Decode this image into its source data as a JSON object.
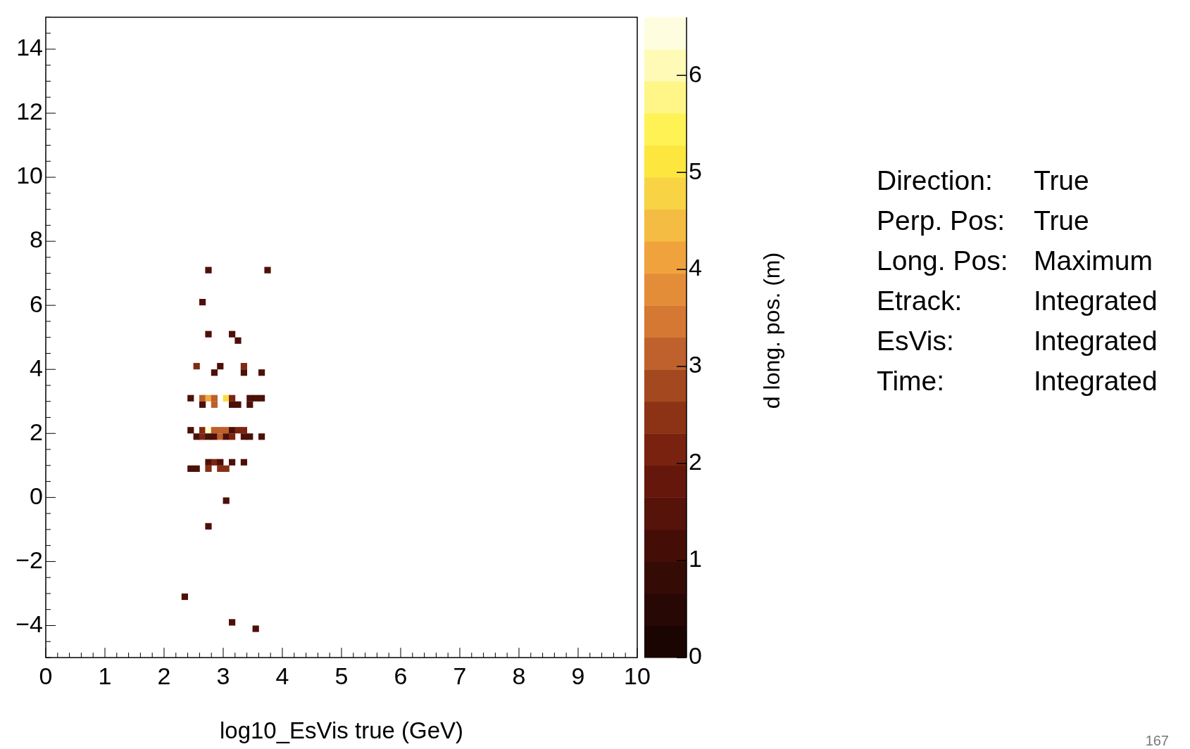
{
  "chart_data": {
    "type": "scatter",
    "xlabel": "log10_EsVis true (GeV)",
    "clabel": "d long. pos. (m)",
    "xlim": [
      0,
      10
    ],
    "xticks": [
      0,
      1,
      2,
      3,
      4,
      5,
      6,
      7,
      8,
      9,
      10
    ],
    "ylim": [
      -5,
      15
    ],
    "yticks": [
      {
        "value": -4,
        "label": "−4"
      },
      {
        "value": -2,
        "label": "−2"
      },
      0,
      2,
      4,
      6,
      8,
      10,
      12,
      14
    ],
    "clim": [
      0,
      6.6
    ],
    "cticks": [
      0,
      1,
      2,
      3,
      4,
      5,
      6
    ],
    "marker": "square",
    "grid": false,
    "legend": false,
    "x": [
      2.75,
      3.75,
      2.65,
      2.75,
      3.15,
      3.25,
      2.55,
      2.95,
      2.85,
      3.35,
      3.35,
      3.65,
      2.45,
      2.65,
      2.75,
      2.85,
      3.05,
      3.15,
      3.45,
      3.55,
      3.65,
      2.65,
      2.85,
      3.15,
      3.25,
      3.45,
      2.45,
      2.65,
      2.75,
      2.85,
      2.95,
      3.05,
      3.15,
      3.25,
      3.35,
      2.55,
      2.65,
      2.75,
      2.85,
      2.95,
      3.05,
      3.15,
      3.35,
      3.45,
      3.65,
      2.75,
      2.85,
      2.95,
      3.15,
      3.35,
      2.45,
      2.55,
      2.75,
      2.95,
      3.05,
      3.05,
      2.75,
      2.35,
      3.15,
      3.55
    ],
    "values": [
      7.1,
      7.1,
      6.1,
      5.1,
      5.1,
      4.9,
      4.1,
      4.1,
      3.9,
      4.1,
      3.9,
      3.9,
      3.1,
      3.1,
      3.1,
      3.1,
      3.1,
      3.1,
      3.1,
      3.1,
      3.1,
      2.9,
      2.9,
      2.9,
      2.9,
      2.9,
      2.1,
      2.1,
      2.1,
      2.1,
      2.1,
      2.1,
      2.1,
      2.1,
      2.1,
      1.9,
      1.9,
      1.9,
      1.9,
      1.9,
      1.9,
      1.9,
      1.9,
      1.9,
      1.9,
      1.1,
      1.1,
      1.1,
      1.1,
      1.1,
      0.9,
      0.9,
      0.9,
      0.9,
      0.9,
      -0.1,
      -0.9,
      -3.1,
      -3.9,
      -4.1
    ],
    "cvalues": [
      1.3,
      1.3,
      1.3,
      1.3,
      1.3,
      1.3,
      2.3,
      1.3,
      1.3,
      2.3,
      1.3,
      1.3,
      1.3,
      3.1,
      4.2,
      3.1,
      4.95,
      2.2,
      1.3,
      1.3,
      1.3,
      1.3,
      3.1,
      1.3,
      1.3,
      1.3,
      1.3,
      2.3,
      6.27,
      3.1,
      3.1,
      3.1,
      1.3,
      2.2,
      2.2,
      1.3,
      2.2,
      1.3,
      1.3,
      3.1,
      1.3,
      2.2,
      1.3,
      1.3,
      1.3,
      1.3,
      2.2,
      1.3,
      1.3,
      1.3,
      1.3,
      1.3,
      2.4,
      2.4,
      2.4,
      1.3,
      1.3,
      1.3,
      1.3,
      1.3
    ],
    "annotations": [
      "Direction:",
      "True",
      "Perp. Pos:",
      "True",
      "Long. Pos:",
      "Maximum",
      "Etrack:",
      "Integrated",
      "EsVis:",
      "Integrated",
      "Time:",
      "Integrated",
      "167"
    ]
  }
}
